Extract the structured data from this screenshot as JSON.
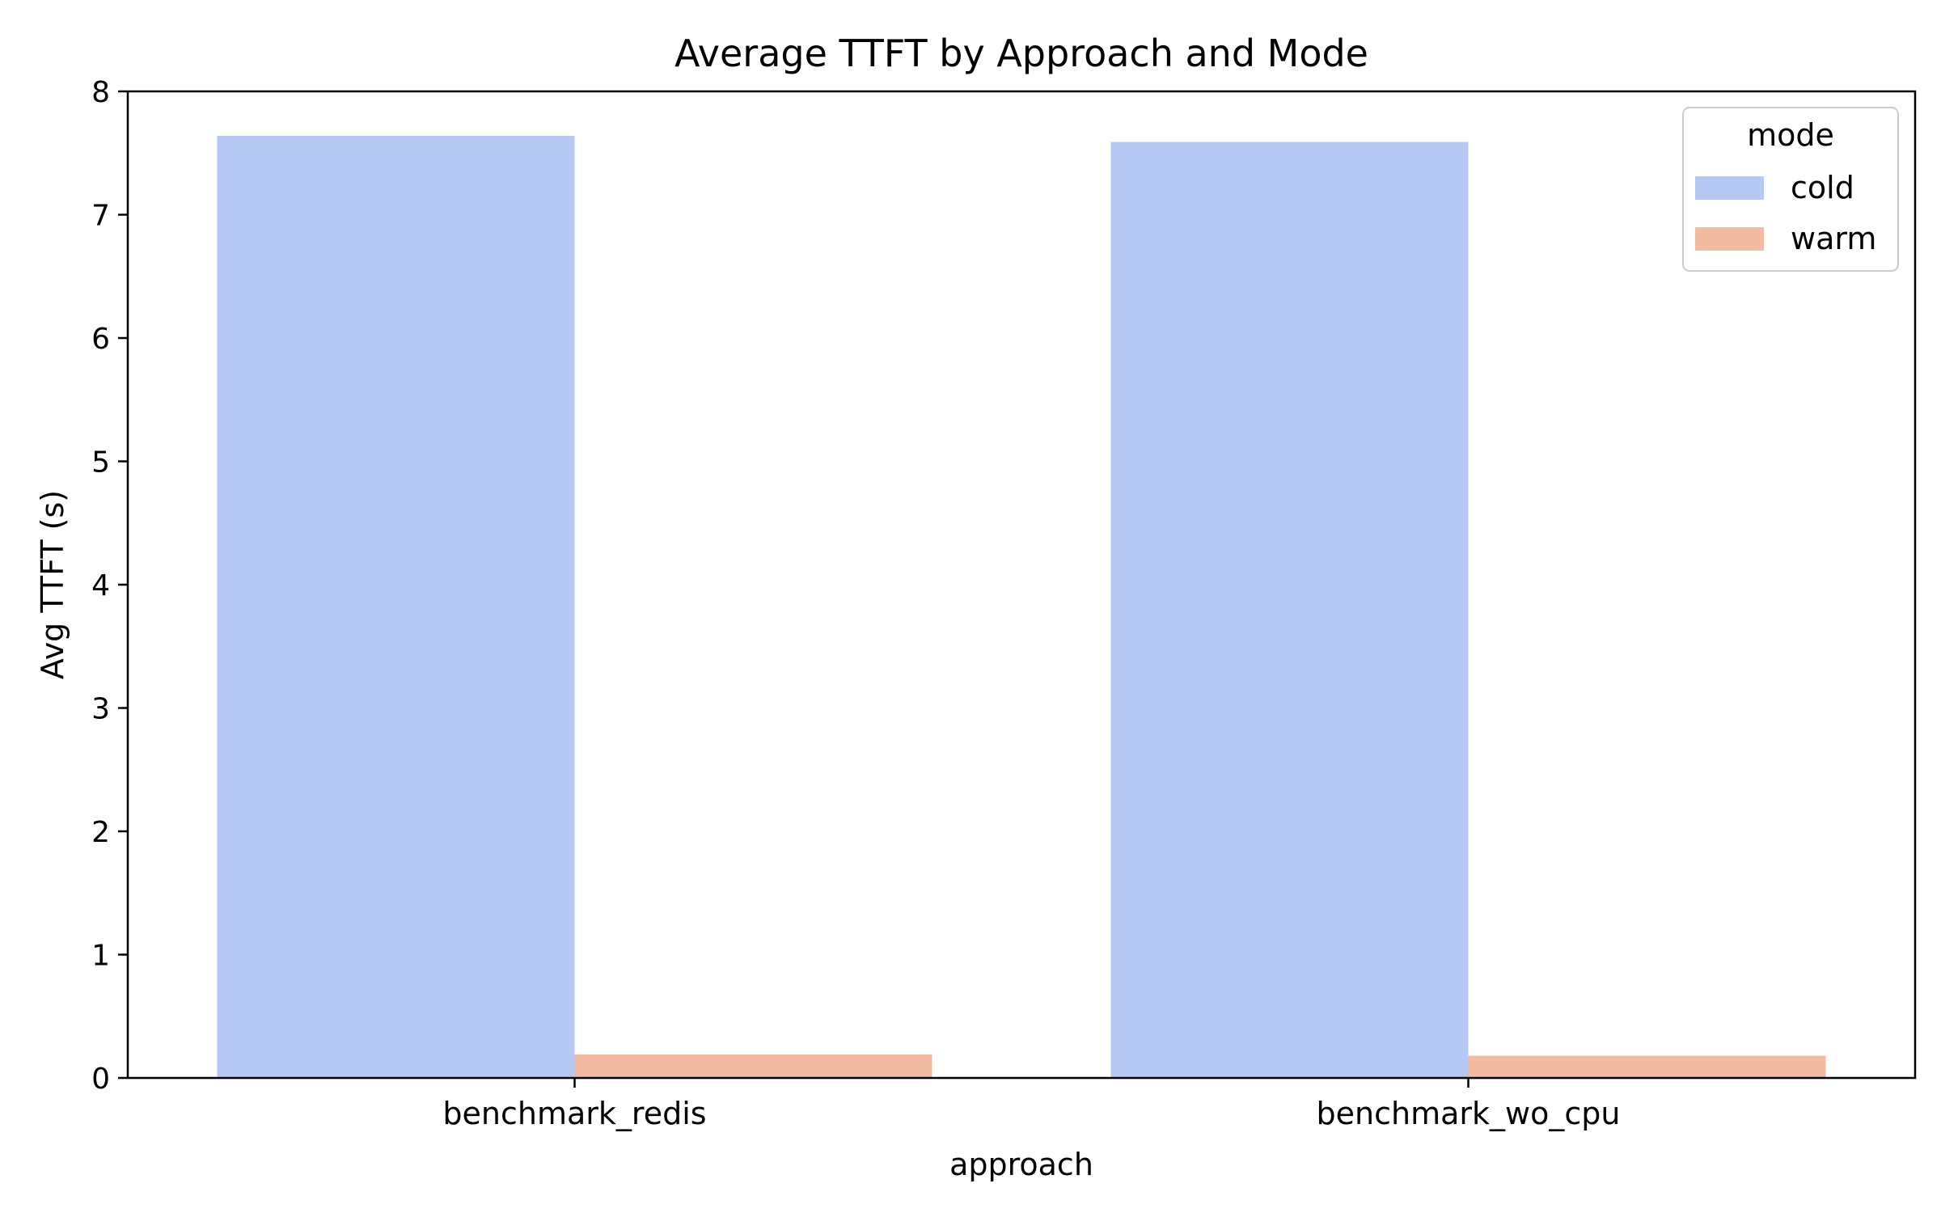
{
  "chart_data": {
    "type": "bar",
    "title": "Average TTFT by Approach and Mode",
    "xlabel": "approach",
    "ylabel": "Avg TTFT (s)",
    "categories": [
      "benchmark_redis",
      "benchmark_wo_cpu"
    ],
    "series": [
      {
        "name": "cold",
        "values": [
          7.64,
          7.59
        ],
        "color": "#b5c9f2"
      },
      {
        "name": "warm",
        "values": [
          0.19,
          0.18
        ],
        "color": "#f2bba2"
      }
    ],
    "ylim": [
      0,
      8
    ],
    "yticks": [
      "0",
      "1",
      "2",
      "3",
      "4",
      "5",
      "6",
      "7",
      "8"
    ],
    "legend": {
      "title": "mode",
      "position": "top-right"
    },
    "grid": false
  }
}
